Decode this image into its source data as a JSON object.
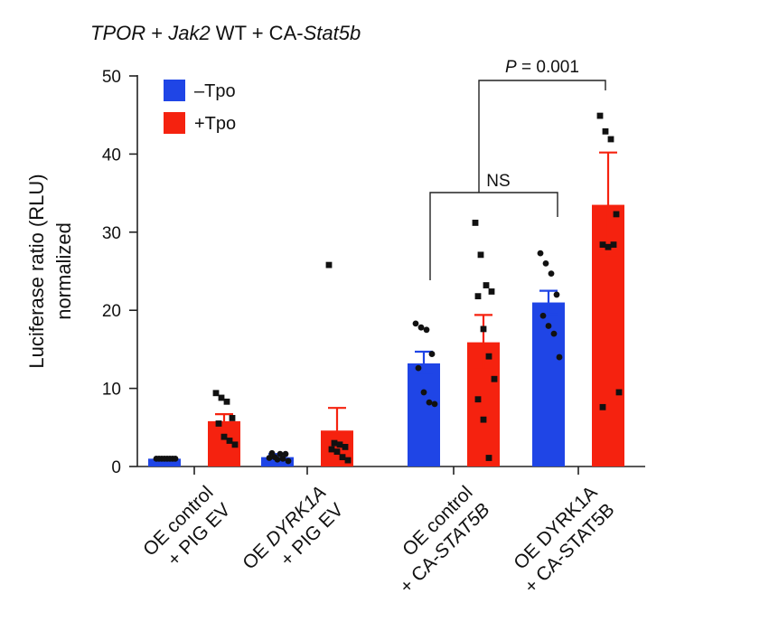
{
  "chart_data": {
    "type": "bar",
    "title_parts": [
      {
        "text": "TPOR",
        "italic": true
      },
      {
        "text": " + ",
        "italic": false
      },
      {
        "text": "Jak2",
        "italic": true
      },
      {
        "text": " WT + CA-",
        "italic": false
      },
      {
        "text": "Stat5b",
        "italic": true
      }
    ],
    "ylabel_lines": [
      "Luciferase ratio (RLU)",
      "normalized"
    ],
    "ylim": [
      0,
      50
    ],
    "yticks": [
      0,
      10,
      20,
      30,
      40,
      50
    ],
    "categories": [
      {
        "lines": [
          [
            {
              "text": "OE control",
              "italic": false
            }
          ],
          [
            {
              "text": "+ PIG EV",
              "italic": false
            }
          ]
        ]
      },
      {
        "lines": [
          [
            {
              "text": "OE ",
              "italic": false
            },
            {
              "text": "DYRK1A",
              "italic": true
            }
          ],
          [
            {
              "text": "+ PIG EV",
              "italic": false
            }
          ]
        ]
      },
      {
        "lines": [
          [
            {
              "text": "OE control",
              "italic": false
            }
          ],
          [
            {
              "text": "+ CA-",
              "italic": false
            },
            {
              "text": "STAT5B",
              "italic": true
            }
          ]
        ]
      },
      {
        "lines": [
          [
            {
              "text": "OE DYRK1A",
              "italic": false
            }
          ],
          [
            {
              "text": "+ CA-STAT5B",
              "italic": false
            }
          ]
        ]
      }
    ],
    "series": [
      {
        "name": "–Tpo",
        "color": "#1f45e6",
        "marker": "circle",
        "values": [
          1.0,
          1.2,
          13.2,
          21.0
        ],
        "errors": [
          0.1,
          0.4,
          1.5,
          1.5
        ],
        "points": [
          [
            1.0,
            1.0,
            1.0,
            1.0,
            1.0,
            1.0,
            1.0,
            1.0
          ],
          [
            1.1,
            1.2,
            1.6,
            1.6,
            1.7,
            0.9,
            1.0,
            0.7
          ],
          [
            18.3,
            17.8,
            17.5,
            14.4,
            12.6,
            9.5,
            8.2,
            8.0
          ],
          [
            27.3,
            26.0,
            24.7,
            22.0,
            19.3,
            18.0,
            17.0,
            14.0
          ]
        ]
      },
      {
        "name": "+Tpo",
        "color": "#f5220f",
        "marker": "square",
        "values": [
          5.8,
          4.6,
          15.9,
          33.5
        ],
        "errors": [
          0.9,
          2.9,
          3.5,
          6.7
        ],
        "points": [
          [
            9.4,
            8.8,
            8.3,
            6.2,
            5.5,
            3.8,
            3.3,
            2.8
          ],
          [
            25.8,
            3.0,
            2.8,
            2.5,
            2.2,
            1.9,
            1.2,
            0.8
          ],
          [
            31.2,
            27.1,
            23.2,
            22.4,
            21.8,
            17.6,
            14.1,
            11.2,
            8.6,
            6.0,
            1.1
          ],
          [
            44.9,
            42.9,
            41.9,
            32.3,
            28.4,
            28.1,
            28.4,
            9.5,
            7.6
          ]
        ]
      }
    ],
    "legend_position": "top-left",
    "annotations": [
      {
        "text": "NS",
        "italic_prefix": "",
        "from": "-Tpo OE control + CA-STAT5B",
        "to": "-Tpo OE DYRK1A + CA-STAT5B"
      },
      {
        "text": " = 0.001",
        "italic_prefix": "P",
        "from": "-Tpo OE control + CA-STAT5B",
        "to": "+Tpo OE DYRK1A + CA-STAT5B"
      }
    ]
  }
}
